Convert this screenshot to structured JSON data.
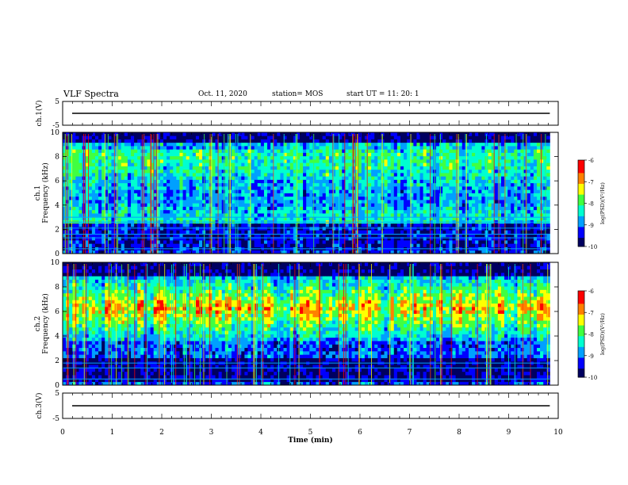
{
  "header": {
    "title": "VLF Spectra",
    "date": "Oct. 11, 2020",
    "station": "station= MOS",
    "start": "start  UT  =   11: 20: 1"
  },
  "colors": {
    "scale": [
      "#000060",
      "#0000ff",
      "#00a0ff",
      "#00ffd0",
      "#40ff40",
      "#ffff00",
      "#ff8000",
      "#ff0000",
      "#ffffff"
    ]
  },
  "chart_data": [
    {
      "type": "line",
      "panel": "ch1-waveform",
      "ylabel": "ch.1(V)",
      "ylim": [
        -5,
        5
      ],
      "yticks": [
        "5",
        "-5"
      ],
      "xlim": [
        0,
        10
      ],
      "level": 0
    },
    {
      "type": "heatmap",
      "panel": "ch1-spectrogram",
      "ylabel_line1": "ch.1",
      "ylabel_line2": "Frequency  (kHz)",
      "ylim": [
        0,
        10
      ],
      "yticks": [
        "0",
        "2",
        "4",
        "6",
        "8",
        "10"
      ],
      "xlim": [
        0,
        9.83
      ],
      "colorbar": {
        "label": "log(PSD)(V²/Hz)",
        "range": [
          -10,
          -6
        ],
        "ticks": [
          "-6",
          "-7",
          "-8",
          "-9",
          "-10"
        ]
      },
      "description_bands": {
        "strong_band_khz": [
          2.5,
          9.0
        ],
        "quiet_lines_khz": [
          0.4,
          1.3,
          1.6,
          2.1,
          2.6,
          3.0
        ]
      }
    },
    {
      "type": "heatmap",
      "panel": "ch2-spectrogram",
      "ylabel_line1": "ch.2",
      "ylabel_line2": "Frequency  (kHz)",
      "ylim": [
        0,
        10
      ],
      "yticks": [
        "0",
        "2",
        "4",
        "6",
        "8",
        "10"
      ],
      "xlim": [
        0,
        9.83
      ],
      "colorbar": {
        "label": "log(PSD)(V²/Hz)",
        "range": [
          -10,
          -6
        ],
        "ticks": [
          "-6",
          "-7",
          "-8",
          "-9",
          "-10"
        ]
      },
      "description_bands": {
        "strong_band_khz": [
          4.5,
          8.0
        ],
        "quiet_lines_khz": [
          0.5,
          1.4,
          1.8
        ]
      }
    },
    {
      "type": "line",
      "panel": "ch3-waveform",
      "ylabel": "ch.3(V)",
      "ylim": [
        -5,
        5
      ],
      "yticks": [
        "5",
        "-5"
      ],
      "xlim": [
        0,
        10
      ],
      "level": 0
    }
  ],
  "xaxis": {
    "label": "Time  (min)",
    "ticks": [
      "0",
      "1",
      "2",
      "3",
      "4",
      "5",
      "6",
      "7",
      "8",
      "9",
      "10"
    ]
  }
}
